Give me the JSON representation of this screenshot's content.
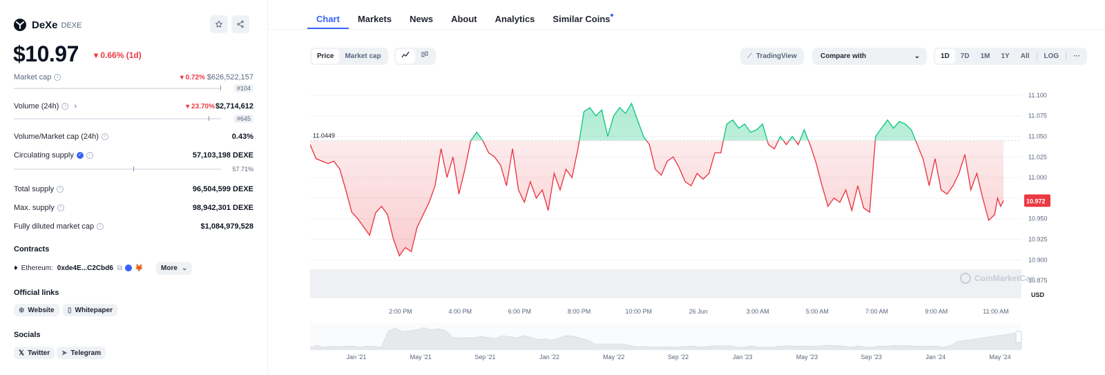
{
  "coin": {
    "name": "DeXe",
    "symbol": "DEXE",
    "price": "$10.97",
    "price_change": "0.66% (1d)"
  },
  "stats": {
    "market_cap": {
      "label": "Market cap",
      "change": "0.72%",
      "value": "$626,522,157",
      "rank": "#104"
    },
    "volume": {
      "label": "Volume (24h)",
      "change": "23.70%",
      "value": "$2,714,612",
      "rank": "#645"
    },
    "vol_mcap": {
      "label": "Volume/Market cap (24h)",
      "value": "0.43%"
    },
    "circ_supply": {
      "label": "Circulating supply",
      "value": "57,103,198 DEXE",
      "pct": "57.71%",
      "fill": 0.5771
    },
    "total_supply": {
      "label": "Total supply",
      "value": "96,504,599 DEXE"
    },
    "max_supply": {
      "label": "Max. supply",
      "value": "98,942,301 DEXE"
    },
    "fdmc": {
      "label": "Fully diluted market cap",
      "value": "$1,084,979,528"
    }
  },
  "contracts": {
    "title": "Contracts",
    "chain": "Ethereum:",
    "address": "0xde4E...C2Cbd6",
    "more": "More"
  },
  "links": {
    "title": "Official links",
    "website": "Website",
    "whitepaper": "Whitepaper"
  },
  "socials": {
    "title": "Socials",
    "twitter": "Twitter",
    "telegram": "Telegram"
  },
  "tabs": [
    "Chart",
    "Markets",
    "News",
    "About",
    "Analytics",
    "Similar Coins"
  ],
  "toolbar": {
    "price": "Price",
    "market_cap": "Market cap",
    "tradingview": "TradingView",
    "compare": "Compare with",
    "ranges": [
      "1D",
      "7D",
      "1M",
      "1Y",
      "All",
      "LOG"
    ],
    "more": "···"
  },
  "colors": {
    "up": "#16c784",
    "down": "#ea3943",
    "accent": "#3861fb"
  },
  "watermark": "CoinMarketCap",
  "chart_data": {
    "type": "line",
    "baseline": 11.0449,
    "baseline_label": "11.0449",
    "current_value": 10.972,
    "current_label": "10.972",
    "currency": "USD",
    "ylim": [
      10.855,
      11.115
    ],
    "y_ticks": [
      "11.100",
      "11.075",
      "11.050",
      "11.025",
      "11.000",
      "10.975",
      "10.950",
      "10.925",
      "10.900",
      "10.875"
    ],
    "y_tick_values": [
      11.1,
      11.075,
      11.05,
      11.025,
      11.0,
      10.975,
      10.95,
      10.925,
      10.9,
      10.875
    ],
    "x_ticks": [
      "2:00 PM",
      "4:00 PM",
      "6:00 PM",
      "8:00 PM",
      "10:00 PM",
      "26 Jun",
      "3:00 AM",
      "5:00 AM",
      "7:00 AM",
      "9:00 AM",
      "11:00 AM"
    ],
    "x_tick_positions": [
      1.52,
      2.52,
      3.52,
      4.52,
      5.52,
      6.52,
      7.52,
      8.52,
      9.52,
      10.52,
      11.52
    ],
    "x_range": [
      0,
      11.95
    ],
    "nav_ticks": [
      "Jan '21",
      "May '21",
      "Sep '21",
      "Jan '22",
      "May '22",
      "Sep '22",
      "Jan '23",
      "May '23",
      "Sep '23",
      "Jan '24",
      "May '24"
    ],
    "series": [
      {
        "values": [
          [
            0.0,
            11.04
          ],
          [
            0.1,
            11.023
          ],
          [
            0.2,
            11.02
          ],
          [
            0.3,
            11.017
          ],
          [
            0.4,
            11.02
          ],
          [
            0.5,
            11.01
          ],
          [
            0.6,
            10.985
          ],
          [
            0.7,
            10.958
          ],
          [
            0.8,
            10.95
          ],
          [
            0.9,
            10.94
          ],
          [
            1.0,
            10.93
          ],
          [
            1.1,
            10.957
          ],
          [
            1.2,
            10.965
          ],
          [
            1.3,
            10.955
          ],
          [
            1.4,
            10.925
          ],
          [
            1.5,
            10.905
          ],
          [
            1.6,
            10.915
          ],
          [
            1.7,
            10.91
          ],
          [
            1.8,
            10.94
          ],
          [
            1.9,
            10.955
          ],
          [
            2.0,
            10.97
          ],
          [
            2.1,
            10.99
          ],
          [
            2.2,
            11.035
          ],
          [
            2.3,
            11.0
          ],
          [
            2.4,
            11.025
          ],
          [
            2.5,
            10.98
          ],
          [
            2.6,
            11.01
          ],
          [
            2.7,
            11.045
          ],
          [
            2.8,
            11.055
          ],
          [
            2.9,
            11.045
          ],
          [
            3.0,
            11.03
          ],
          [
            3.1,
            11.025
          ],
          [
            3.2,
            11.015
          ],
          [
            3.3,
            10.99
          ],
          [
            3.4,
            11.035
          ],
          [
            3.5,
            10.985
          ],
          [
            3.6,
            10.97
          ],
          [
            3.7,
            10.995
          ],
          [
            3.8,
            10.975
          ],
          [
            3.9,
            10.985
          ],
          [
            4.0,
            10.96
          ],
          [
            4.1,
            11.005
          ],
          [
            4.2,
            10.985
          ],
          [
            4.3,
            11.01
          ],
          [
            4.4,
            11.0
          ],
          [
            4.5,
            11.035
          ],
          [
            4.6,
            11.08
          ],
          [
            4.7,
            11.085
          ],
          [
            4.8,
            11.075
          ],
          [
            4.9,
            11.082
          ],
          [
            5.0,
            11.05
          ],
          [
            5.1,
            11.075
          ],
          [
            5.2,
            11.085
          ],
          [
            5.3,
            11.078
          ],
          [
            5.4,
            11.09
          ],
          [
            5.5,
            11.07
          ],
          [
            5.6,
            11.05
          ],
          [
            5.7,
            11.04
          ],
          [
            5.8,
            11.01
          ],
          [
            5.9,
            11.003
          ],
          [
            6.0,
            11.02
          ],
          [
            6.1,
            11.025
          ],
          [
            6.2,
            11.012
          ],
          [
            6.3,
            10.995
          ],
          [
            6.4,
            10.99
          ],
          [
            6.5,
            11.005
          ],
          [
            6.6,
            10.998
          ],
          [
            6.7,
            11.005
          ],
          [
            6.8,
            11.03
          ],
          [
            6.9,
            11.03
          ],
          [
            7.0,
            11.065
          ],
          [
            7.1,
            11.07
          ],
          [
            7.2,
            11.06
          ],
          [
            7.3,
            11.065
          ],
          [
            7.4,
            11.055
          ],
          [
            7.5,
            11.058
          ],
          [
            7.6,
            11.065
          ],
          [
            7.7,
            11.04
          ],
          [
            7.8,
            11.035
          ],
          [
            7.9,
            11.05
          ],
          [
            8.0,
            11.04
          ],
          [
            8.1,
            11.05
          ],
          [
            8.2,
            11.04
          ],
          [
            8.3,
            11.058
          ],
          [
            8.4,
            11.04
          ],
          [
            8.5,
            11.018
          ],
          [
            8.6,
            10.99
          ],
          [
            8.7,
            10.965
          ],
          [
            8.8,
            10.975
          ],
          [
            8.9,
            10.97
          ],
          [
            9.0,
            10.985
          ],
          [
            9.1,
            10.96
          ],
          [
            9.2,
            10.99
          ],
          [
            9.3,
            10.963
          ],
          [
            9.4,
            10.958
          ],
          [
            9.5,
            11.05
          ],
          [
            9.6,
            11.06
          ],
          [
            9.7,
            11.07
          ],
          [
            9.8,
            11.06
          ],
          [
            9.9,
            11.068
          ],
          [
            10.0,
            11.065
          ],
          [
            10.1,
            11.058
          ],
          [
            10.2,
            11.04
          ],
          [
            10.3,
            11.022
          ],
          [
            10.4,
            10.99
          ],
          [
            10.5,
            11.023
          ],
          [
            10.6,
            10.985
          ],
          [
            10.7,
            10.98
          ],
          [
            10.8,
            10.99
          ],
          [
            10.9,
            11.005
          ],
          [
            11.0,
            11.028
          ],
          [
            11.1,
            10.985
          ],
          [
            11.2,
            11.005
          ],
          [
            11.3,
            10.975
          ],
          [
            11.4,
            10.948
          ],
          [
            11.5,
            10.955
          ],
          [
            11.55,
            10.975
          ],
          [
            11.6,
            10.965
          ],
          [
            11.65,
            10.972
          ]
        ]
      }
    ]
  }
}
